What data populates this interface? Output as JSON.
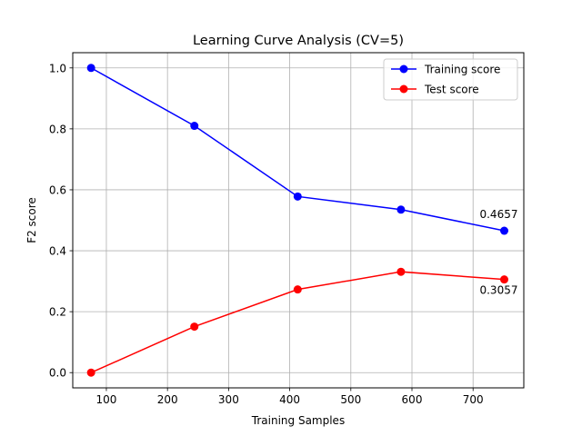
{
  "chart_data": {
    "type": "line",
    "title": "Learning Curve Analysis (CV=5)",
    "xlabel": "Training Samples",
    "ylabel": "F2 score",
    "xlim": [
      45,
      783
    ],
    "ylim": [
      -0.05,
      1.05
    ],
    "x_ticks": [
      100,
      200,
      300,
      400,
      500,
      600,
      700
    ],
    "y_ticks": [
      0.0,
      0.2,
      0.4,
      0.6,
      0.8,
      1.0
    ],
    "grid": true,
    "legend_position": "top-right",
    "x": [
      75,
      244,
      413,
      582,
      751
    ],
    "series": [
      {
        "name": "Training score",
        "color": "#0000ff",
        "values": [
          1.0,
          0.81,
          0.578,
          0.535,
          0.4657
        ]
      },
      {
        "name": "Test score",
        "color": "#ff0000",
        "values": [
          0.0,
          0.151,
          0.273,
          0.331,
          0.3057
        ]
      }
    ],
    "annotations": [
      {
        "text": "0.4657",
        "series": 0,
        "point": 4
      },
      {
        "text": "0.3057",
        "series": 1,
        "point": 4
      }
    ]
  }
}
